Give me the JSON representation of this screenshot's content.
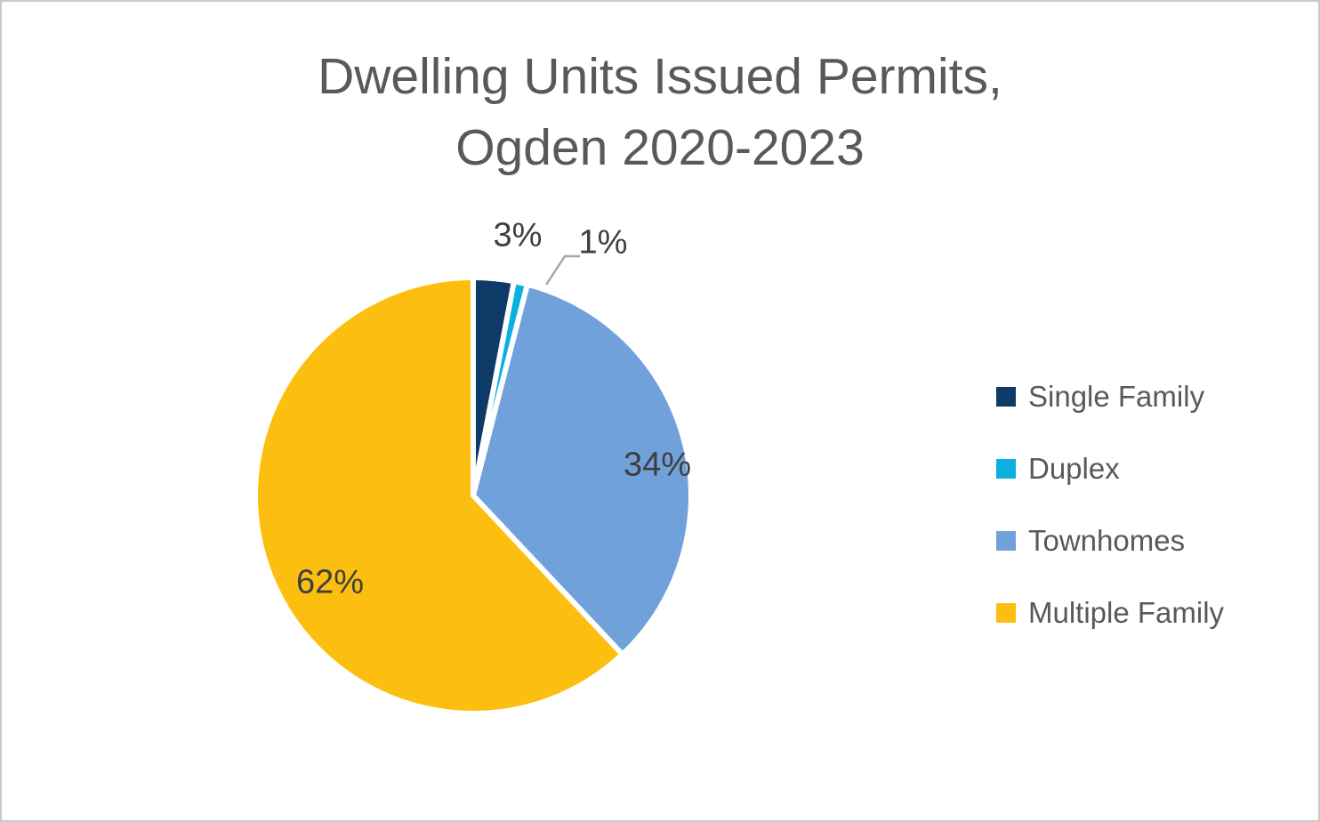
{
  "frame": {
    "background_color": "#ffffff",
    "border_color": "#c9c9c9"
  },
  "chart_data": {
    "type": "pie",
    "title": "Dwelling Units Issued Permits, Ogden 2020-2023",
    "title_lines": [
      "Dwelling Units Issued Permits,",
      "Ogden 2020-2023"
    ],
    "direction": "clockwise",
    "start_angle_deg": 0,
    "legend_position": "right",
    "slice_separator_color": "#ffffff",
    "callout_line_color": "#a6a6a6",
    "title_color": "#58595b",
    "label_color": "#3f3f3f",
    "legend_text_color": "#595959",
    "slices": [
      {
        "name": "Single Family",
        "value": 3,
        "label": "3%",
        "color": "#0e3a67",
        "label_placement": "outside"
      },
      {
        "name": "Duplex",
        "value": 1,
        "label": "1%",
        "color": "#0ab1e0",
        "label_placement": "outside-callout"
      },
      {
        "name": "Townhomes",
        "value": 34,
        "label": "34%",
        "color": "#71a1da",
        "label_placement": "inside"
      },
      {
        "name": "Multiple Family",
        "value": 62,
        "label": "62%",
        "color": "#fcbf10",
        "label_placement": "inside"
      }
    ]
  },
  "legend": {
    "items": [
      {
        "label": "Single Family",
        "color": "#0e3a67"
      },
      {
        "label": "Duplex",
        "color": "#0ab1e0"
      },
      {
        "label": "Townhomes",
        "color": "#71a1da"
      },
      {
        "label": "Multiple Family",
        "color": "#fcbf10"
      }
    ]
  }
}
